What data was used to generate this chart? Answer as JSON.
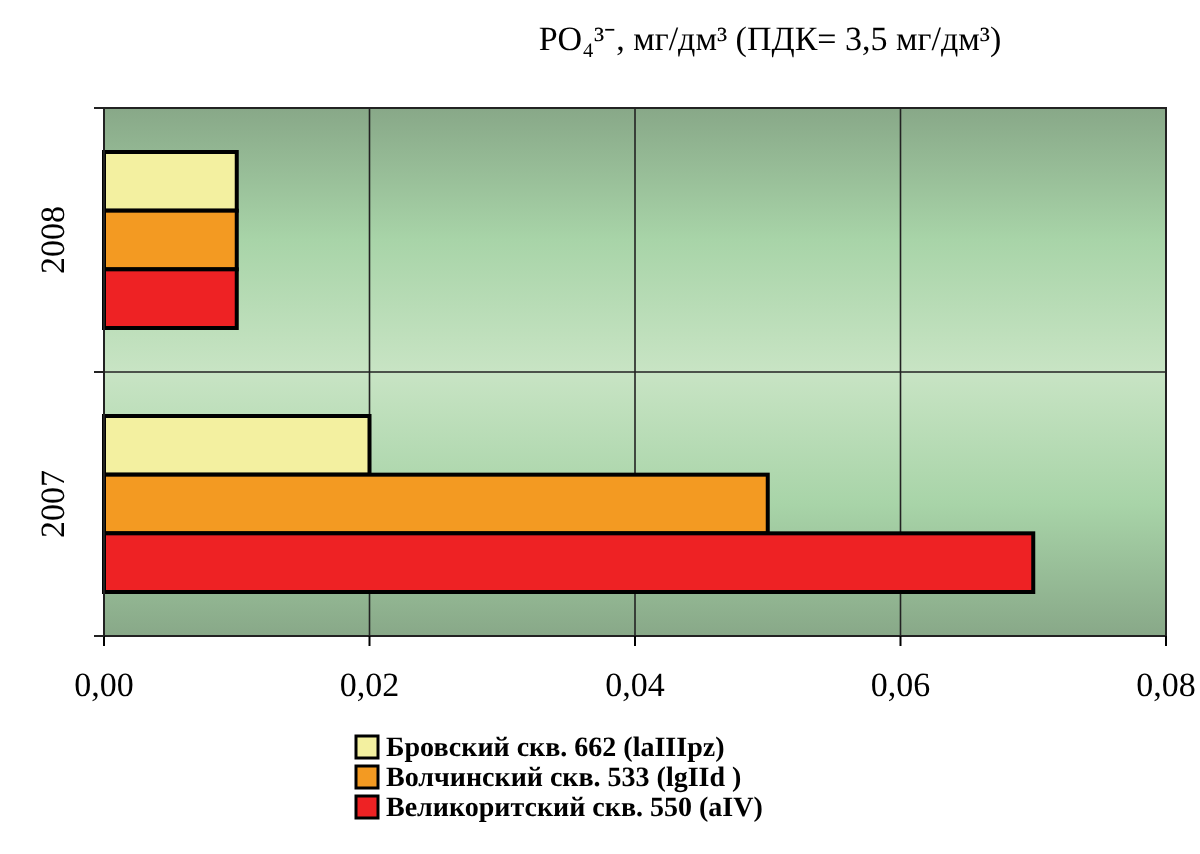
{
  "chart_data": {
    "type": "bar",
    "orientation": "horizontal",
    "title": "PO₄³⁻, мг/дм³ (ПДК= 3,5 мг/дм³)",
    "categories": [
      "2008",
      "2007"
    ],
    "series": [
      {
        "name": "Бровский скв. 662 (laIIIpz)",
        "color": "#f3f0a0",
        "values": [
          0.01,
          0.02
        ]
      },
      {
        "name": "Волчинский скв. 533 (lgIId )",
        "color": "#f39a22",
        "values": [
          0.01,
          0.05
        ]
      },
      {
        "name": "Великоритский скв. 550 (aIV)",
        "color": "#ee2224",
        "values": [
          0.01,
          0.07
        ]
      }
    ],
    "xlim": [
      0,
      0.08
    ],
    "xticks": [
      {
        "value": 0,
        "label": "0,00"
      },
      {
        "value": 0.02,
        "label": "0,02"
      },
      {
        "value": 0.04,
        "label": "0,04"
      },
      {
        "value": 0.06,
        "label": "0,06"
      },
      {
        "value": 0.08,
        "label": "0,08"
      }
    ],
    "grid": true,
    "legend": "bottom"
  }
}
